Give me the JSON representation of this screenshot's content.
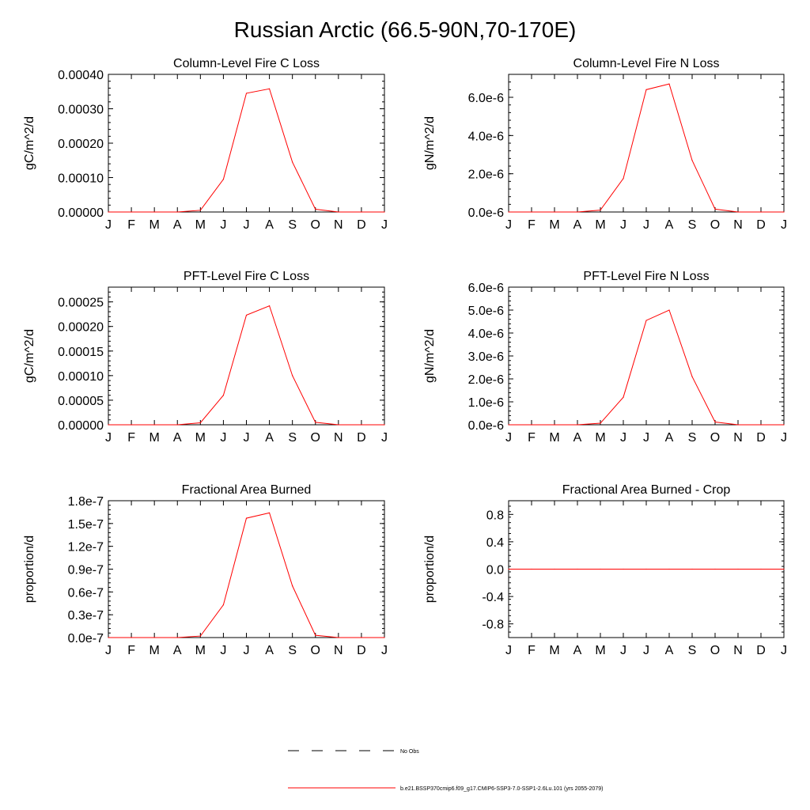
{
  "title": "Russian Arctic (66.5-90N,70-170E)",
  "legend": [
    {
      "label": "No Obs",
      "style": "dashed",
      "color": "#000000"
    },
    {
      "label": "b.e21.BSSP370cmip6.f09_g17.CMIP6-SSP3-7.0-SSP1-2.6Lu.101 (yrs 2055-2079)",
      "style": "solid",
      "color": "#ff0000"
    }
  ],
  "chart_data": [
    {
      "type": "line",
      "title": "Column-Level Fire C Loss",
      "ylabel": "gC/m^2/d",
      "x": [
        "J",
        "F",
        "M",
        "A",
        "M",
        "J",
        "J",
        "A",
        "S",
        "O",
        "N",
        "D",
        "J"
      ],
      "ylim": [
        0,
        0.0004
      ],
      "yticks": [
        0,
        0.0001,
        0.0002,
        0.0003,
        0.0004
      ],
      "yticklabels": [
        "0.00000",
        "0.00010",
        "0.00020",
        "0.00030",
        "0.00040"
      ],
      "series": [
        {
          "name": "b.e21.BSSP370cmip6.f09_g17.CMIP6-SSP3-7.0-SSP1-2.6Lu.101 (yrs 2055-2079)",
          "color": "#ff0000",
          "values": [
            0,
            0,
            0,
            0,
            5e-06,
            9.5e-05,
            0.000345,
            0.000358,
            0.000145,
            8e-06,
            0,
            0,
            0
          ]
        }
      ]
    },
    {
      "type": "line",
      "title": "Column-Level Fire N Loss",
      "ylabel": "gN/m^2/d",
      "x": [
        "J",
        "F",
        "M",
        "A",
        "M",
        "J",
        "J",
        "A",
        "S",
        "O",
        "N",
        "D",
        "J"
      ],
      "ylim": [
        0,
        7.2e-06
      ],
      "yticks": [
        0,
        2e-06,
        4e-06,
        6e-06
      ],
      "yticklabels": [
        "0.0e-6",
        "2.0e-6",
        "4.0e-6",
        "6.0e-6"
      ],
      "series": [
        {
          "name": "b.e21.BSSP370cmip6.f09_g17.CMIP6-SSP3-7.0-SSP1-2.6Lu.101 (yrs 2055-2079)",
          "color": "#ff0000",
          "values": [
            0,
            0,
            0,
            0,
            1e-07,
            1.75e-06,
            6.4e-06,
            6.7e-06,
            2.7e-06,
            1.5e-07,
            0,
            0,
            0
          ]
        }
      ]
    },
    {
      "type": "line",
      "title": "PFT-Level Fire C Loss",
      "ylabel": "gC/m^2/d",
      "x": [
        "J",
        "F",
        "M",
        "A",
        "M",
        "J",
        "J",
        "A",
        "S",
        "O",
        "N",
        "D",
        "J"
      ],
      "ylim": [
        0,
        0.00028
      ],
      "yticks": [
        0,
        5e-05,
        0.0001,
        0.00015,
        0.0002,
        0.00025
      ],
      "yticklabels": [
        "0.00000",
        "0.00005",
        "0.00010",
        "0.00015",
        "0.00020",
        "0.00025"
      ],
      "series": [
        {
          "name": "b.e21.BSSP370cmip6.f09_g17.CMIP6-SSP3-7.0-SSP1-2.6Lu.101 (yrs 2055-2079)",
          "color": "#ff0000",
          "values": [
            0,
            0,
            0,
            0,
            4e-06,
            6e-05,
            0.000223,
            0.000242,
            0.0001,
            5e-06,
            0,
            0,
            0
          ]
        }
      ]
    },
    {
      "type": "line",
      "title": "PFT-Level Fire N Loss",
      "ylabel": "gN/m^2/d",
      "x": [
        "J",
        "F",
        "M",
        "A",
        "M",
        "J",
        "J",
        "A",
        "S",
        "O",
        "N",
        "D",
        "J"
      ],
      "ylim": [
        0,
        6e-06
      ],
      "yticks": [
        0,
        1e-06,
        2e-06,
        3e-06,
        4e-06,
        5e-06,
        6e-06
      ],
      "yticklabels": [
        "0.0e-6",
        "1.0e-6",
        "2.0e-6",
        "3.0e-6",
        "4.0e-6",
        "5.0e-6",
        "6.0e-6"
      ],
      "series": [
        {
          "name": "b.e21.BSSP370cmip6.f09_g17.CMIP6-SSP3-7.0-SSP1-2.6Lu.101 (yrs 2055-2079)",
          "color": "#ff0000",
          "values": [
            0,
            0,
            0,
            0,
            7e-08,
            1.2e-06,
            4.55e-06,
            5e-06,
            2.1e-06,
            1.2e-07,
            0,
            0,
            0
          ]
        }
      ]
    },
    {
      "type": "line",
      "title": "Fractional Area Burned",
      "ylabel": "proportion/d",
      "x": [
        "J",
        "F",
        "M",
        "A",
        "M",
        "J",
        "J",
        "A",
        "S",
        "O",
        "N",
        "D",
        "J"
      ],
      "ylim": [
        0,
        1.8e-07
      ],
      "yticks": [
        0,
        3e-08,
        6e-08,
        9e-08,
        1.2e-07,
        1.5e-07,
        1.8e-07
      ],
      "yticklabels": [
        "0.0e-7",
        "0.3e-7",
        "0.6e-7",
        "0.9e-7",
        "1.2e-7",
        "1.5e-7",
        "1.8e-7"
      ],
      "series": [
        {
          "name": "b.e21.BSSP370cmip6.f09_g17.CMIP6-SSP3-7.0-SSP1-2.6Lu.101 (yrs 2055-2079)",
          "color": "#ff0000",
          "values": [
            0,
            0,
            0,
            0,
            2e-09,
            4.3e-08,
            1.57e-07,
            1.64e-07,
            6.8e-08,
            3e-09,
            0,
            0,
            0
          ]
        }
      ]
    },
    {
      "type": "line",
      "title": "Fractional Area Burned - Crop",
      "ylabel": "proportion/d",
      "x": [
        "J",
        "F",
        "M",
        "A",
        "M",
        "J",
        "J",
        "A",
        "S",
        "O",
        "N",
        "D",
        "J"
      ],
      "ylim": [
        -1,
        1
      ],
      "yticks": [
        -0.8,
        -0.4,
        0,
        0.4,
        0.8
      ],
      "yticklabels": [
        "-0.8",
        "-0.4",
        "0.0",
        "0.4",
        "0.8"
      ],
      "series": [
        {
          "name": "b.e21.BSSP370cmip6.f09_g17.CMIP6-SSP3-7.0-SSP1-2.6Lu.101 (yrs 2055-2079)",
          "color": "#ff0000",
          "values": [
            0,
            0,
            0,
            0,
            0,
            0,
            0,
            0,
            0,
            0,
            0,
            0,
            0
          ]
        }
      ]
    }
  ]
}
